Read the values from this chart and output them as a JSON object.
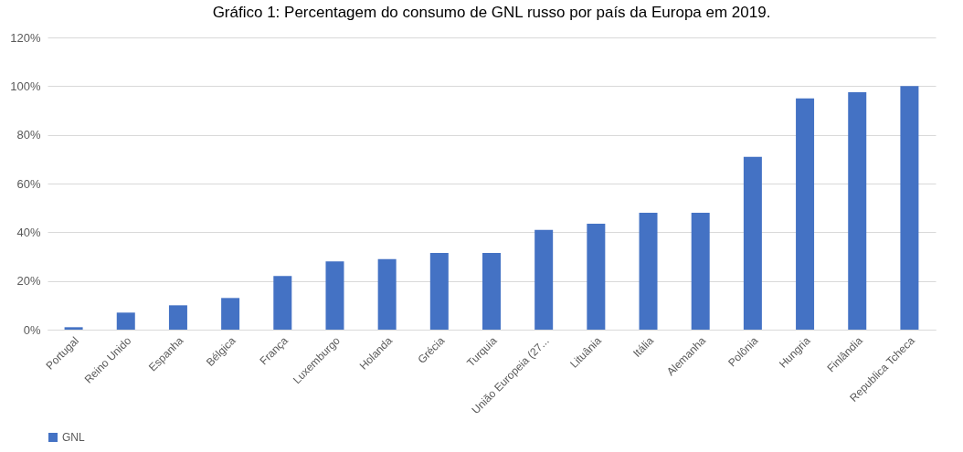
{
  "chart_data": {
    "type": "bar",
    "title": "Gráfico 1: Percentagem do consumo de GNL russo por país da Europa em 2019.",
    "categories": [
      "Portugal",
      "Reino Unido",
      "Espanha",
      "Bélgica",
      "França",
      "Luxemburgo",
      "Holanda",
      "Grécia",
      "Turquia",
      "União Europeia (27...",
      "Lituânia",
      "Itália",
      "Alemanha",
      "Polônia",
      "Hungria",
      "Finlândia",
      "Republica Tcheca"
    ],
    "series": [
      {
        "name": "GNL",
        "color": "#4472c4",
        "values": [
          1,
          7,
          10,
          13,
          22,
          28,
          29,
          31.5,
          31.5,
          41,
          43.5,
          48,
          48,
          71,
          95,
          97.5,
          100
        ]
      }
    ],
    "ylim": [
      0,
      120
    ],
    "yticks": [
      {
        "value": 0,
        "label": "0%"
      },
      {
        "value": 20,
        "label": "20%"
      },
      {
        "value": 40,
        "label": "40%"
      },
      {
        "value": 60,
        "label": "60%"
      },
      {
        "value": 80,
        "label": "80%"
      },
      {
        "value": 100,
        "label": "100%"
      },
      {
        "value": 120,
        "label": "120%"
      }
    ],
    "grid": "y",
    "legend": "bottom"
  }
}
